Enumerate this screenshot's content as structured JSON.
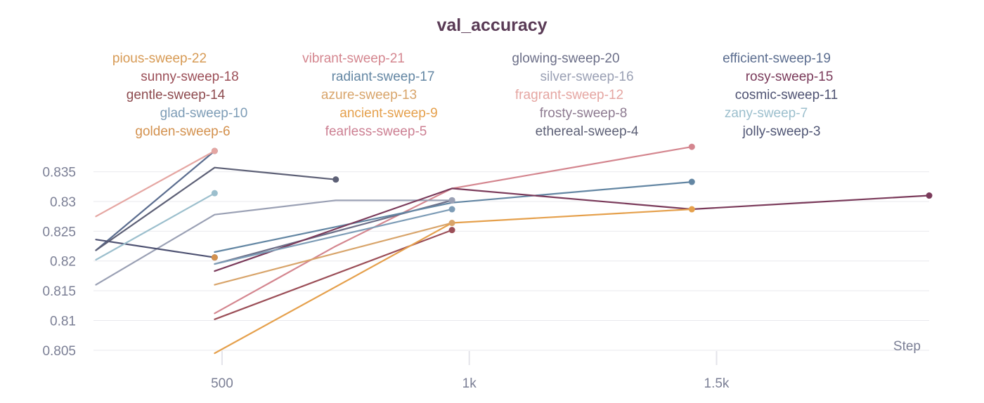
{
  "chart_data": {
    "type": "line",
    "title": "val_accuracy",
    "xlabel": "Step",
    "ylabel": "",
    "xlim": [
      240,
      1930
    ],
    "ylim": [
      0.8025,
      0.8385
    ],
    "x_ticks": [
      {
        "value": 500,
        "label": "500"
      },
      {
        "value": 1000,
        "label": "1k"
      },
      {
        "value": 1500,
        "label": "1.5k"
      }
    ],
    "y_ticks": [
      {
        "value": 0.805,
        "label": "0.805"
      },
      {
        "value": 0.81,
        "label": "0.81"
      },
      {
        "value": 0.815,
        "label": "0.815"
      },
      {
        "value": 0.82,
        "label": "0.82"
      },
      {
        "value": 0.825,
        "label": "0.825"
      },
      {
        "value": 0.83,
        "label": "0.83"
      },
      {
        "value": 0.835,
        "label": "0.835"
      }
    ],
    "grid": true,
    "legend_position": "top",
    "series": [
      {
        "name": "pious-sweep-22",
        "color": "#d79a54",
        "points": []
      },
      {
        "name": "vibrant-sweep-21",
        "color": "#d4868f",
        "points": [
          [
            485,
            0.8112
          ],
          [
            730,
            0.8225
          ],
          [
            965,
            0.8322
          ],
          [
            1450,
            0.8392
          ]
        ]
      },
      {
        "name": "glowing-sweep-20",
        "color": "#6c6f88",
        "points": [
          [
            485,
            0.8195
          ],
          [
            965,
            0.8302
          ]
        ]
      },
      {
        "name": "efficient-sweep-19",
        "color": "#5b6d8f",
        "points": [
          [
            245,
            0.8218
          ],
          [
            485,
            0.8385
          ]
        ]
      },
      {
        "name": "sunny-sweep-18",
        "color": "#9b4e57",
        "points": [
          [
            485,
            0.8102
          ],
          [
            965,
            0.8252
          ]
        ]
      },
      {
        "name": "radiant-sweep-17",
        "color": "#6386a3",
        "points": [
          [
            485,
            0.8215
          ],
          [
            965,
            0.8298
          ],
          [
            1450,
            0.8333
          ]
        ]
      },
      {
        "name": "silver-sweep-16",
        "color": "#9aa0b4",
        "points": [
          [
            245,
            0.816
          ],
          [
            485,
            0.8278
          ],
          [
            730,
            0.8302
          ],
          [
            965,
            0.8302
          ]
        ]
      },
      {
        "name": "rosy-sweep-15",
        "color": "#7a3a5a",
        "points": [
          [
            485,
            0.8183
          ],
          [
            965,
            0.8322
          ],
          [
            1450,
            0.8287
          ],
          [
            1930,
            0.831
          ]
        ]
      },
      {
        "name": "gentle-sweep-14",
        "color": "#8d4a4e",
        "points": []
      },
      {
        "name": "azure-sweep-13",
        "color": "#d8a46a",
        "points": [
          [
            485,
            0.816
          ],
          [
            965,
            0.8264
          ]
        ]
      },
      {
        "name": "fragrant-sweep-12",
        "color": "#e5a6a2",
        "points": [
          [
            245,
            0.8275
          ],
          [
            485,
            0.8385
          ]
        ]
      },
      {
        "name": "cosmic-sweep-11",
        "color": "#4e5272",
        "points": [
          [
            245,
            0.8236
          ],
          [
            485,
            0.8206
          ]
        ]
      },
      {
        "name": "glad-sweep-10",
        "color": "#7d9cb6",
        "points": [
          [
            485,
            0.8195
          ],
          [
            965,
            0.8287
          ]
        ]
      },
      {
        "name": "ancient-sweep-9",
        "color": "#e5a04c",
        "points": [
          [
            485,
            0.8045
          ],
          [
            965,
            0.8264
          ],
          [
            1450,
            0.8287
          ]
        ]
      },
      {
        "name": "frosty-sweep-8",
        "color": "#8d7a90",
        "points": []
      },
      {
        "name": "zany-sweep-7",
        "color": "#9cbfcd",
        "points": [
          [
            245,
            0.8202
          ],
          [
            485,
            0.8314
          ]
        ]
      },
      {
        "name": "golden-sweep-6",
        "color": "#d3914e",
        "points": [
          [
            485,
            0.8206
          ]
        ]
      },
      {
        "name": "fearless-sweep-5",
        "color": "#cc7f92",
        "points": []
      },
      {
        "name": "ethereal-sweep-4",
        "color": "#5d6076",
        "points": [
          [
            245,
            0.8218
          ],
          [
            485,
            0.8357
          ],
          [
            730,
            0.8337
          ]
        ]
      },
      {
        "name": "jolly-sweep-3",
        "color": "#4f5574",
        "points": []
      }
    ]
  }
}
